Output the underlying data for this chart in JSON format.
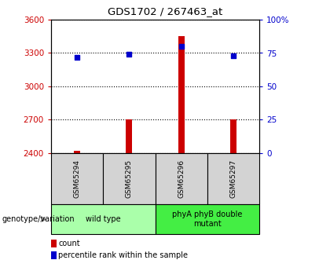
{
  "title": "GDS1702 / 267463_at",
  "samples": [
    "GSM65294",
    "GSM65295",
    "GSM65296",
    "GSM65297"
  ],
  "count_values": [
    2420,
    2700,
    3450,
    2700
  ],
  "percentile_values": [
    72,
    74,
    80,
    73
  ],
  "ylim_left": [
    2400,
    3600
  ],
  "ylim_right": [
    0,
    100
  ],
  "yticks_left": [
    2400,
    2700,
    3000,
    3300,
    3600
  ],
  "yticks_right": [
    0,
    25,
    50,
    75,
    100
  ],
  "ytick_labels_right": [
    "0",
    "25",
    "50",
    "75",
    "100%"
  ],
  "groups": [
    {
      "label": "wild type",
      "samples": [
        0,
        1
      ],
      "color": "#aaffaa"
    },
    {
      "label": "phyA phyB double\nmutant",
      "samples": [
        2,
        3
      ],
      "color": "#44ee44"
    }
  ],
  "bar_color": "#cc0000",
  "dot_color": "#0000cc",
  "left_tick_color": "#cc0000",
  "right_tick_color": "#0000cc",
  "legend_items": [
    {
      "label": "count",
      "color": "#cc0000"
    },
    {
      "label": "percentile rank within the sample",
      "color": "#0000cc"
    }
  ],
  "genotype_label": "genotype/variation",
  "sample_box_color": "#d3d3d3",
  "bg_color": "#ffffff"
}
